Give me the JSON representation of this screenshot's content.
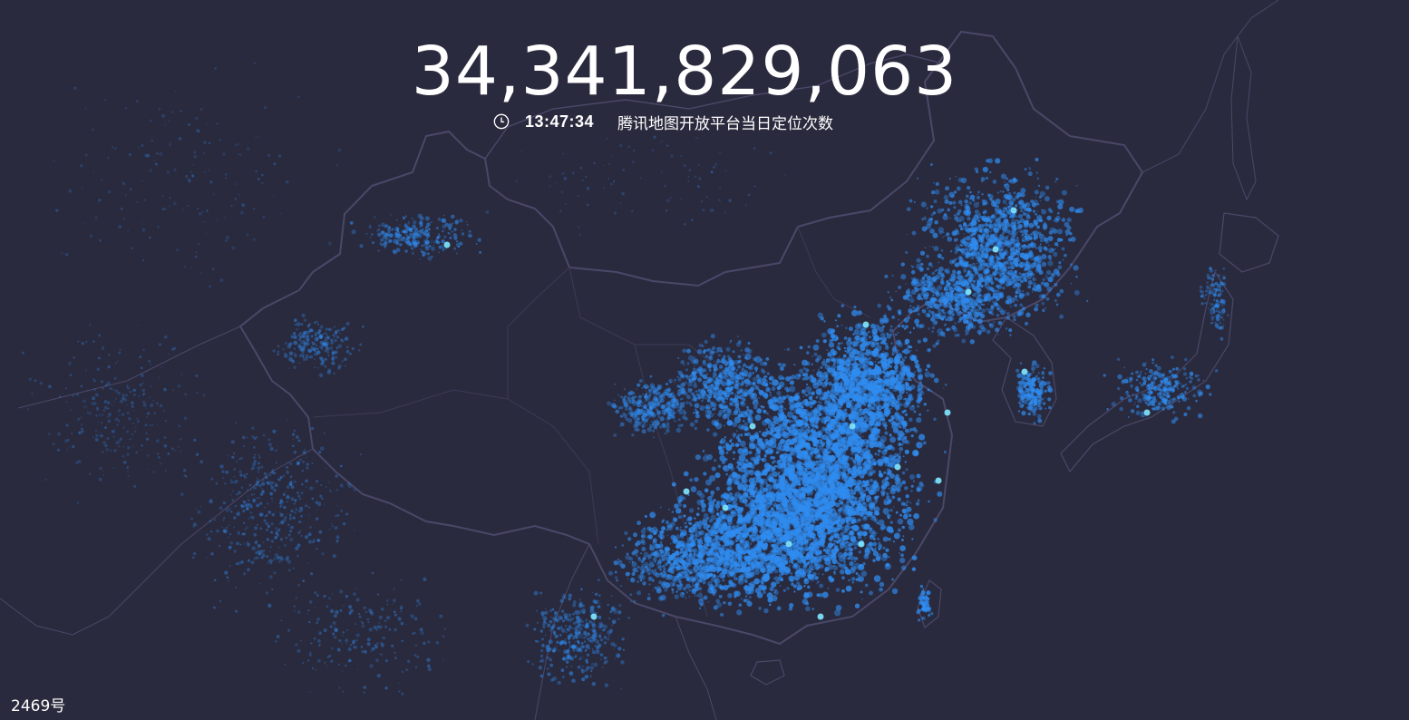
{
  "header": {
    "counter": "34,341,829,063",
    "time": "13:47:34",
    "caption": "腾讯地图开放平台当日定位次数"
  },
  "footer": {
    "label": "2469号"
  },
  "map": {
    "background_color": "#2a2a3e",
    "border_color": "#4a4868",
    "point_color": "#2f8cf0",
    "highlight_color": "#7fe8ff",
    "icons": {
      "clock": "clock-icon"
    }
  }
}
